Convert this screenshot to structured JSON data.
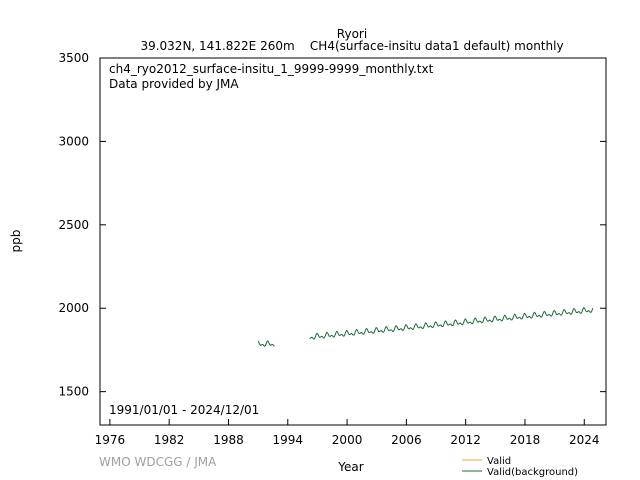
{
  "chart_data": {
    "type": "line",
    "title": "Ryori",
    "subtitle": "39.032N, 141.822E 260m    CH4(surface-insitu data1 default) monthly",
    "file_label": "ch4_ryo2012_surface-insitu_1_9999-9999_monthly.txt",
    "provider_label": "Data provided by JMA",
    "date_range_label": "1991/01/01 - 2024/12/01",
    "credit": "WMO WDCGG / JMA",
    "xlabel": "Year",
    "ylabel": "ppb",
    "xlim": [
      1975,
      2026.2
    ],
    "ylim": [
      1300,
      3500
    ],
    "x_ticks": [
      1976,
      1982,
      1988,
      1994,
      2000,
      2006,
      2012,
      2018,
      2024
    ],
    "y_ticks": [
      1500,
      2000,
      2500,
      3000,
      3500
    ],
    "grid": false,
    "legend_position": "bottom-right",
    "series": [
      {
        "name": "Valid",
        "color": "#f0a030",
        "points": []
      },
      {
        "name": "Valid(background)",
        "color": "#1f6b3a",
        "segments": [
          {
            "start_year": 1991.0,
            "end_year": 1992.7,
            "base": 1785,
            "trend_per_year": 0,
            "amplitude": 20,
            "phase_year": 1991.0
          },
          {
            "start_year": 1996.2,
            "end_year": 2024.9,
            "base": 1826,
            "trend_per_year": 5.7,
            "amplitude": 20,
            "phase_year": 1996.0
          }
        ]
      }
    ]
  }
}
